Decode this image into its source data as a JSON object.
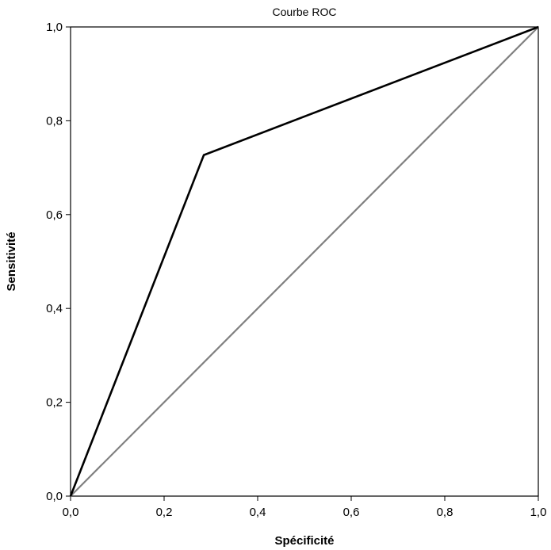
{
  "chart_data": {
    "type": "line",
    "title": "Courbe ROC",
    "xlabel": "Spécificité",
    "ylabel": "Sensitivité",
    "xlim": [
      0,
      1
    ],
    "ylim": [
      0,
      1
    ],
    "x_ticks": [
      "0,0",
      "0,2",
      "0,4",
      "0,6",
      "0,8",
      "1,0"
    ],
    "y_ticks": [
      "0,0",
      "0,2",
      "0,4",
      "0,6",
      "0,8",
      "1,0"
    ],
    "grid": false,
    "legend": "none",
    "series": [
      {
        "x": [
          0.0,
          0.285,
          1.0
        ],
        "y": [
          0.0,
          0.727,
          1.0
        ],
        "color": "#000000"
      },
      {
        "x": [
          0.0,
          1.0
        ],
        "y": [
          0.0,
          1.0
        ],
        "color": "#808080"
      }
    ]
  }
}
